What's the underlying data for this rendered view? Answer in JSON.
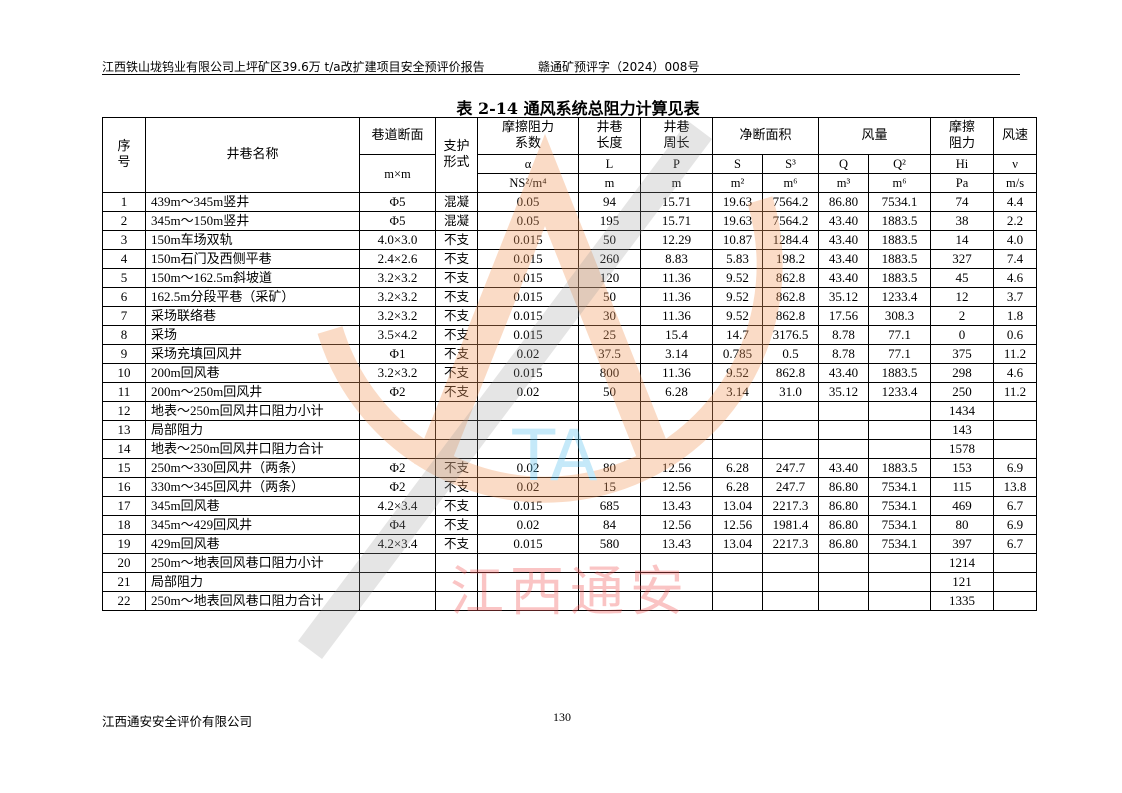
{
  "header": {
    "report_title": "江西铁山垅钨业有限公司上坪矿区39.6万 t/a改扩建项目安全预评价报告",
    "report_number": "赣通矿预评字（2024）008号"
  },
  "table_title": "表 2-14 通风系统总阻力计算见表",
  "table": {
    "header_row1": [
      "序号",
      "井巷名称",
      "巷道断面",
      "支护形式",
      "摩擦阻力系数",
      "井巷长度",
      "井巷周长",
      "净断面积",
      "风量",
      "摩擦阻力",
      "风速"
    ],
    "header_row2": [
      "m×m",
      "α",
      "L",
      "P",
      "S",
      "S³",
      "Q",
      "Q²",
      "Hi",
      "ν"
    ],
    "header_row3": [
      "NS²/m⁴",
      "m",
      "m",
      "m²",
      "m⁶",
      "m³",
      "m⁶",
      "Pa",
      "m/s"
    ],
    "rows": [
      [
        "1",
        "439m～345m竖井",
        "Φ5",
        "混凝",
        "0.05",
        "94",
        "15.71",
        "19.63",
        "7564.2",
        "86.80",
        "7534.1",
        "74",
        "4.4"
      ],
      [
        "2",
        "345m～150m竖井",
        "Φ5",
        "混凝",
        "0.05",
        "195",
        "15.71",
        "19.63",
        "7564.2",
        "43.40",
        "1883.5",
        "38",
        "2.2"
      ],
      [
        "3",
        "150m车场双轨",
        "4.0×3.0",
        "不支",
        "0.015",
        "50",
        "12.29",
        "10.87",
        "1284.4",
        "43.40",
        "1883.5",
        "14",
        "4.0"
      ],
      [
        "4",
        "150m石门及西侧平巷",
        "2.4×2.6",
        "不支",
        "0.015",
        "260",
        "8.83",
        "5.83",
        "198.2",
        "43.40",
        "1883.5",
        "327",
        "7.4"
      ],
      [
        "5",
        "150m～162.5m斜坡道",
        "3.2×3.2",
        "不支",
        "0.015",
        "120",
        "11.36",
        "9.52",
        "862.8",
        "43.40",
        "1883.5",
        "45",
        "4.6"
      ],
      [
        "6",
        "162.5m分段平巷（采矿）",
        "3.2×3.2",
        "不支",
        "0.015",
        "50",
        "11.36",
        "9.52",
        "862.8",
        "35.12",
        "1233.4",
        "12",
        "3.7"
      ],
      [
        "7",
        "采场联络巷",
        "3.2×3.2",
        "不支",
        "0.015",
        "30",
        "11.36",
        "9.52",
        "862.8",
        "17.56",
        "308.3",
        "2",
        "1.8"
      ],
      [
        "8",
        "采场",
        "3.5×4.2",
        "不支",
        "0.015",
        "25",
        "15.4",
        "14.7",
        "3176.5",
        "8.78",
        "77.1",
        "0",
        "0.6"
      ],
      [
        "9",
        "采场充填回风井",
        "Φ1",
        "不支",
        "0.02",
        "37.5",
        "3.14",
        "0.785",
        "0.5",
        "8.78",
        "77.1",
        "375",
        "11.2"
      ],
      [
        "10",
        "200m回风巷",
        "3.2×3.2",
        "不支",
        "0.015",
        "800",
        "11.36",
        "9.52",
        "862.8",
        "43.40",
        "1883.5",
        "298",
        "4.6"
      ],
      [
        "11",
        "200m～250m回风井",
        "Φ2",
        "不支",
        "0.02",
        "50",
        "6.28",
        "3.14",
        "31.0",
        "35.12",
        "1233.4",
        "250",
        "11.2"
      ],
      [
        "12",
        "地表～250m回风井口阻力小计",
        "",
        "",
        "",
        "",
        "",
        "",
        "",
        "",
        "",
        "1434",
        ""
      ],
      [
        "13",
        "局部阻力",
        "",
        "",
        "",
        "",
        "",
        "",
        "",
        "",
        "",
        "143",
        ""
      ],
      [
        "14",
        "地表～250m回风井口阻力合计",
        "",
        "",
        "",
        "",
        "",
        "",
        "",
        "",
        "",
        "1578",
        ""
      ],
      [
        "15",
        "250m～330回风井（两条）",
        "Φ2",
        "不支",
        "0.02",
        "80",
        "12.56",
        "6.28",
        "247.7",
        "43.40",
        "1883.5",
        "153",
        "6.9"
      ],
      [
        "16",
        "330m～345回风井（两条）",
        "Φ2",
        "不支",
        "0.02",
        "15",
        "12.56",
        "6.28",
        "247.7",
        "86.80",
        "7534.1",
        "115",
        "13.8"
      ],
      [
        "17",
        "345m回风巷",
        "4.2×3.4",
        "不支",
        "0.015",
        "685",
        "13.43",
        "13.04",
        "2217.3",
        "86.80",
        "7534.1",
        "469",
        "6.7"
      ],
      [
        "18",
        "345m～429回风井",
        "Φ4",
        "不支",
        "0.02",
        "84",
        "12.56",
        "12.56",
        "1981.4",
        "86.80",
        "7534.1",
        "80",
        "6.9"
      ],
      [
        "19",
        "429m回风巷",
        "4.2×3.4",
        "不支",
        "0.015",
        "580",
        "13.43",
        "13.04",
        "2217.3",
        "86.80",
        "7534.1",
        "397",
        "6.7"
      ],
      [
        "20",
        "250m～地表回风巷口阻力小计",
        "",
        "",
        "",
        "",
        "",
        "",
        "",
        "",
        "",
        "1214",
        ""
      ],
      [
        "21",
        "局部阻力",
        "",
        "",
        "",
        "",
        "",
        "",
        "",
        "",
        "",
        "121",
        ""
      ],
      [
        "22",
        "250m～地表回风巷口阻力合计",
        "",
        "",
        "",
        "",
        "",
        "",
        "",
        "",
        "",
        "1335",
        ""
      ]
    ]
  },
  "watermark": {
    "text": "江西通安",
    "logo_text": "TA",
    "color": "#f4a07a"
  },
  "footer": {
    "company": "江西通安安全评价有限公司",
    "page_number": "130"
  }
}
